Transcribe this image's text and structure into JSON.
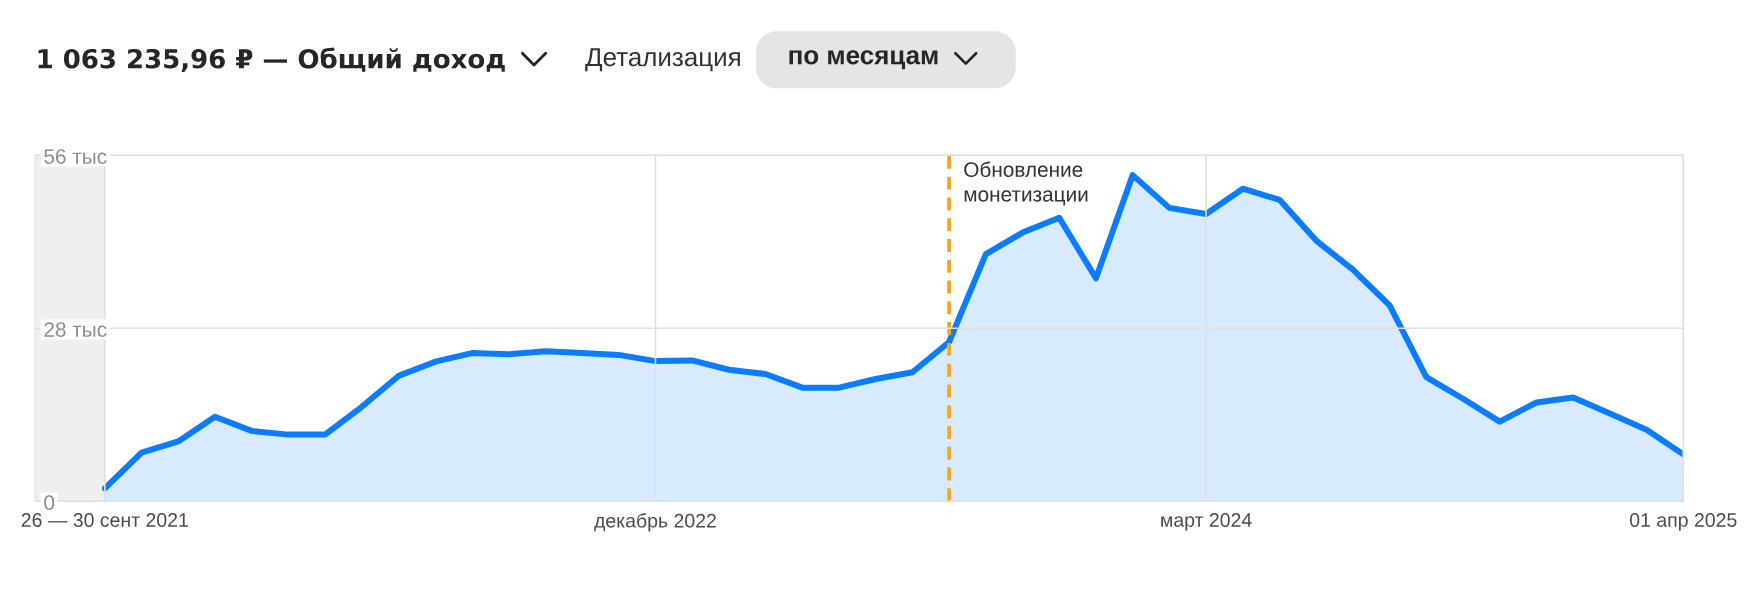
{
  "chart_data": {
    "type": "area",
    "title": "1 063 235,96 ₽ — Общий доход",
    "subtitle": "Детализация",
    "annotations": [
      "по месяцам"
    ],
    "x": [
      "2021-09",
      "2021-10",
      "2021-11",
      "2021-12",
      "2022-01",
      "2022-02",
      "2022-03",
      "2022-04",
      "2022-05",
      "2022-06",
      "2022-07",
      "2022-08",
      "2022-09",
      "2022-10",
      "2022-11",
      "2022-12",
      "2023-01",
      "2023-02",
      "2023-03",
      "2023-04",
      "2023-05",
      "2023-06",
      "2023-07",
      "2023-08",
      "2023-09",
      "2023-10",
      "2023-11",
      "2023-12",
      "2024-01",
      "2024-02",
      "2024-03",
      "2024-04",
      "2024-05",
      "2024-06",
      "2024-07",
      "2024-08",
      "2024-09",
      "2024-10",
      "2024-11",
      "2024-12",
      "2025-01",
      "2025-02",
      "2025-03",
      "2025-04"
    ],
    "series": [
      {
        "color": "#0a7cff",
        "values": [
          2.1,
          7.9,
          9.7,
          13.7,
          11.4,
          10.8,
          10.8,
          15.3,
          20.3,
          22.6,
          24.0,
          23.8,
          24.3,
          24.0,
          23.7,
          22.7,
          22.8,
          21.3,
          20.6,
          18.4,
          18.4,
          19.8,
          20.9,
          25.8,
          40.0,
          43.5,
          45.9,
          36.1,
          52.8,
          47.5,
          46.5,
          50.6,
          48.8,
          42.2,
          37.5,
          31.7,
          20.1,
          16.6,
          12.9,
          16.0,
          16.8,
          14.2,
          11.6,
          7.6
        ]
      }
    ],
    "xlim": [
      "2021-07-05",
      "2025-04"
    ],
    "xticks": [
      {
        "value": "2021-09",
        "label": "26 — 30 сент 2021"
      },
      {
        "value": "2022-12",
        "label": "декабрь 2022"
      },
      {
        "value": "2024-03",
        "label": "март 2024"
      },
      {
        "value": "2025-04",
        "label": "01 апр 2025"
      }
    ],
    "ylim": [
      0,
      56
    ],
    "yticks": [
      0,
      {
        "value": 28,
        "label": "28 тыс"
      },
      {
        "value": 56,
        "label": "56 тыс"
      }
    ],
    "grid": true,
    "ref_lines": [
      {
        "axis": "x",
        "value": "2023-08",
        "label": "Обновление монетизации",
        "color": "#f5a623",
        "line_style": "dashed"
      }
    ],
    "bands": [
      {
        "axis": "x",
        "from": "2021-07-05",
        "to": "2021-09",
        "color": "#efefef"
      }
    ]
  }
}
